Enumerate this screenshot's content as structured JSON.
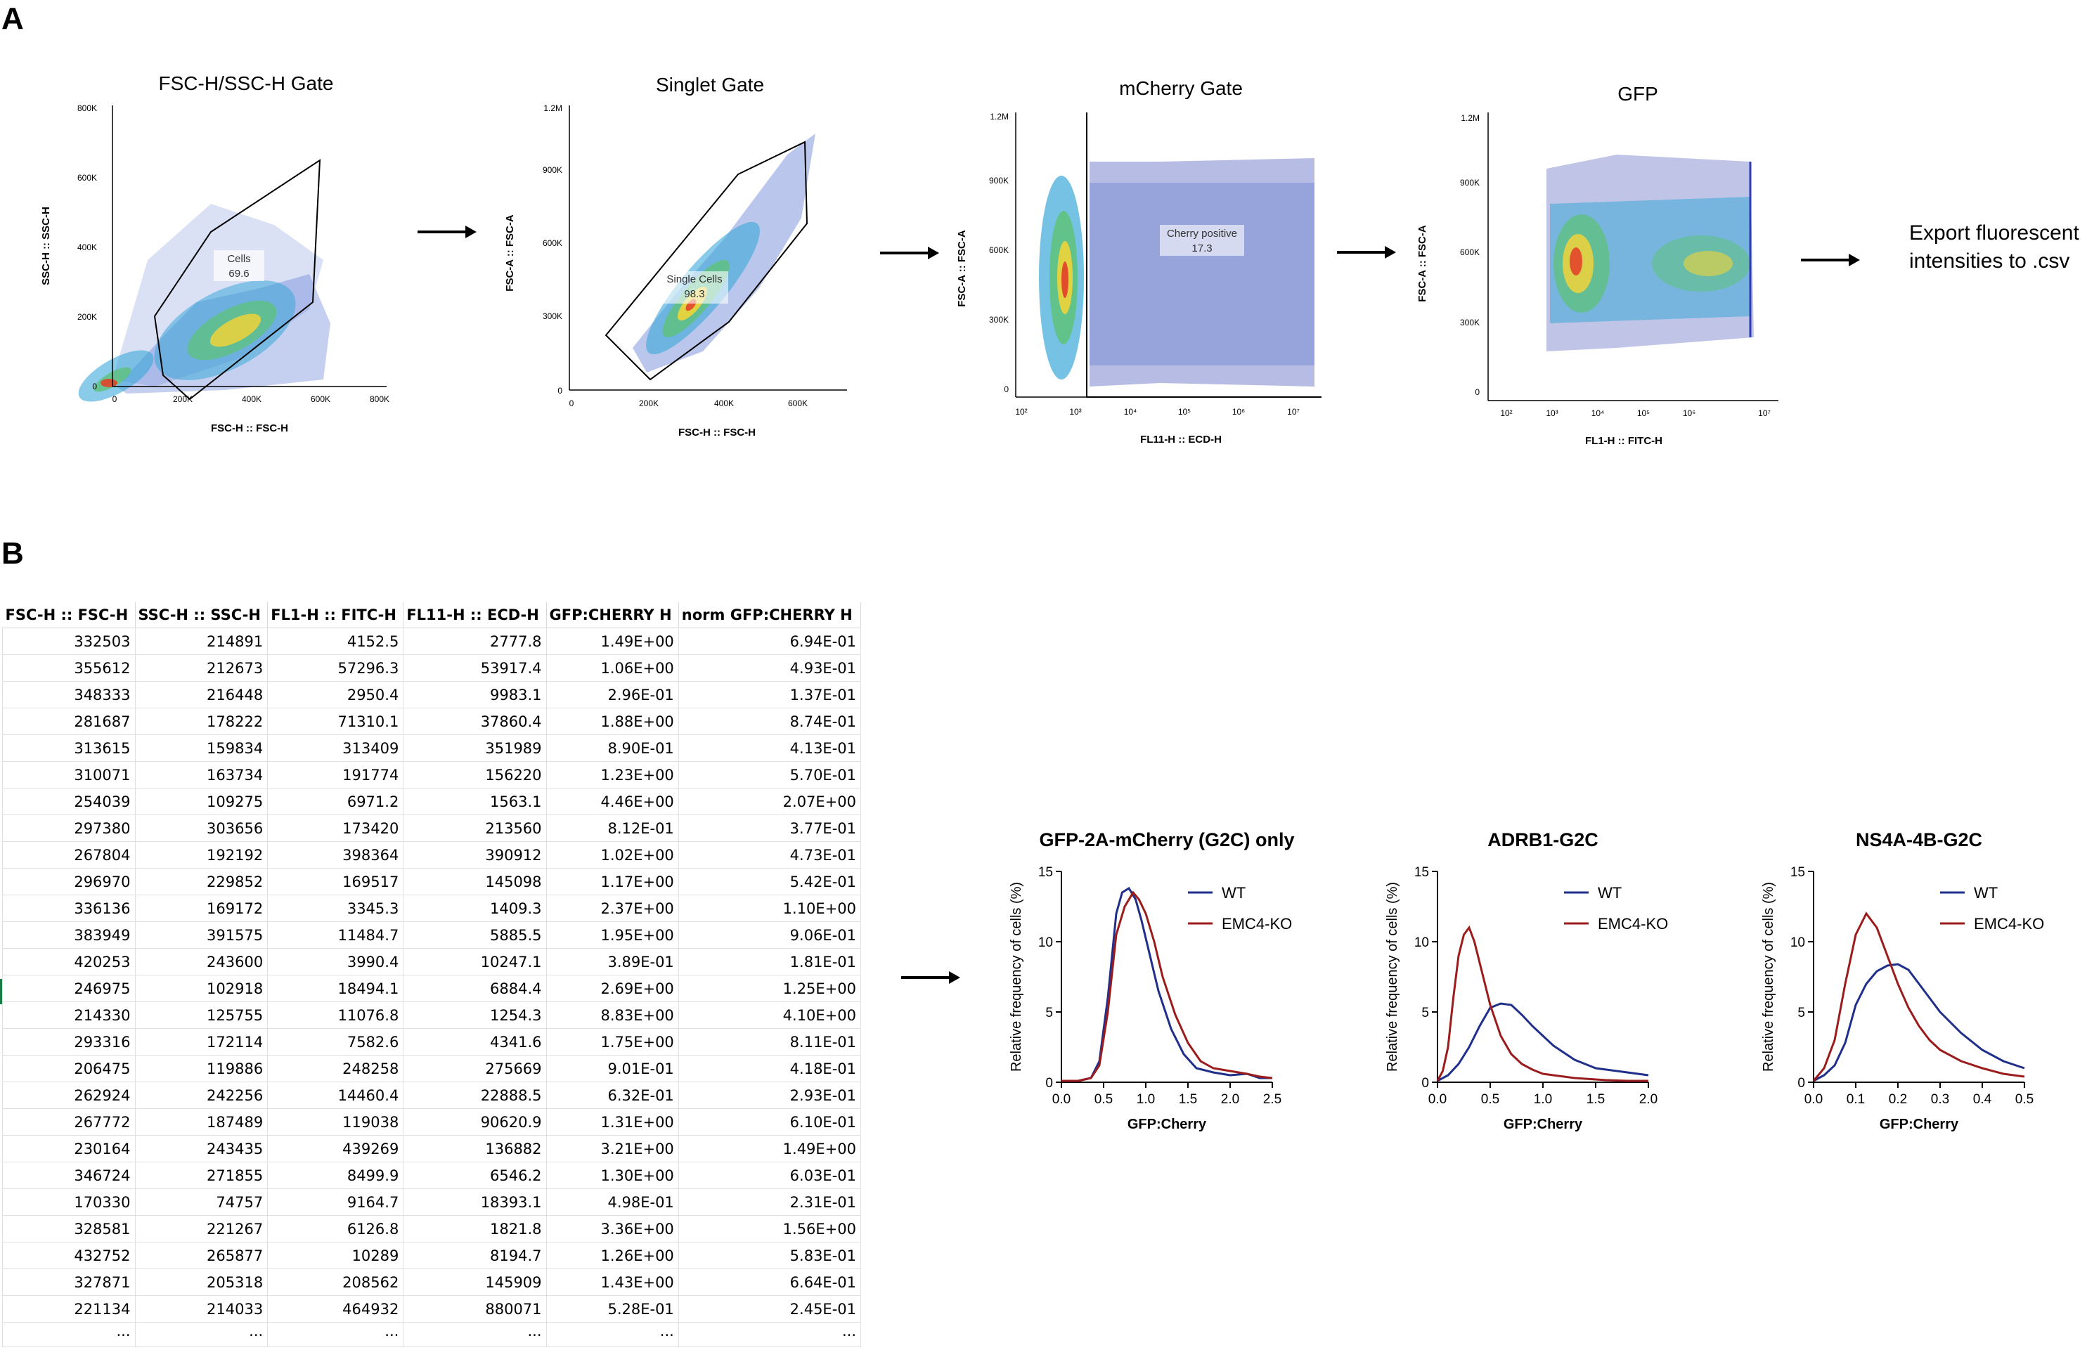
{
  "panel_a": {
    "letter": "A",
    "arrow_glyph": "→",
    "export_text": [
      "Export fluorescent",
      "intensities to .csv"
    ],
    "plots": [
      {
        "title": "FSC-H/SSC-H Gate",
        "x_label": "FSC-H :: FSC-H",
        "y_label": "SSC-H :: SSC-H",
        "x_ticks": [
          "0",
          "200K",
          "400K",
          "600K",
          "800K"
        ],
        "y_ticks": [
          "0",
          "200K",
          "400K",
          "600K",
          "800K"
        ],
        "gate_name": "Cells",
        "gate_value": "69.6"
      },
      {
        "title": "Singlet Gate",
        "x_label": "FSC-H :: FSC-H",
        "y_label": "FSC-A :: FSC-A",
        "x_ticks": [
          "0",
          "200K",
          "400K",
          "600K"
        ],
        "y_ticks": [
          "0",
          "300K",
          "600K",
          "900K",
          "1.2M"
        ],
        "gate_name": "Single Cells",
        "gate_value": "98.3"
      },
      {
        "title": "mCherry Gate",
        "x_label": "FL11-H :: ECD-H",
        "y_label": "FSC-A :: FSC-A",
        "x_ticks": [
          "10²",
          "10³",
          "10⁴",
          "10⁵",
          "10⁶",
          "10⁷"
        ],
        "y_ticks": [
          "0",
          "300K",
          "600K",
          "900K",
          "1.2M"
        ],
        "gate_name": "Cherry positive",
        "gate_value": "17.3"
      },
      {
        "title": "GFP",
        "x_label": "FL1-H :: FITC-H",
        "y_label": "FSC-A :: FSC-A",
        "x_ticks": [
          "10²",
          "10³",
          "10⁴",
          "10⁵",
          "10⁶",
          "10⁷"
        ],
        "y_ticks": [
          "0",
          "300K",
          "600K",
          "900K",
          "1.2M"
        ],
        "gate_name": "",
        "gate_value": ""
      }
    ]
  },
  "panel_b": {
    "letter": "B",
    "arrow_glyph": "→",
    "table": {
      "headers": [
        "FSC-H :: FSC-H",
        "SSC-H :: SSC-H",
        "FL1-H :: FITC-H",
        "FL11-H :: ECD-H",
        "GFP:CHERRY H",
        "norm GFP:CHERRY H"
      ],
      "rows": [
        [
          "332503",
          "214891",
          "4152.5",
          "2777.8",
          "1.49E+00",
          "6.94E-01"
        ],
        [
          "355612",
          "212673",
          "57296.3",
          "53917.4",
          "1.06E+00",
          "4.93E-01"
        ],
        [
          "348333",
          "216448",
          "2950.4",
          "9983.1",
          "2.96E-01",
          "1.37E-01"
        ],
        [
          "281687",
          "178222",
          "71310.1",
          "37860.4",
          "1.88E+00",
          "8.74E-01"
        ],
        [
          "313615",
          "159834",
          "313409",
          "351989",
          "8.90E-01",
          "4.13E-01"
        ],
        [
          "310071",
          "163734",
          "191774",
          "156220",
          "1.23E+00",
          "5.70E-01"
        ],
        [
          "254039",
          "109275",
          "6971.2",
          "1563.1",
          "4.46E+00",
          "2.07E+00"
        ],
        [
          "297380",
          "303656",
          "173420",
          "213560",
          "8.12E-01",
          "3.77E-01"
        ],
        [
          "267804",
          "192192",
          "398364",
          "390912",
          "1.02E+00",
          "4.73E-01"
        ],
        [
          "296970",
          "229852",
          "169517",
          "145098",
          "1.17E+00",
          "5.42E-01"
        ],
        [
          "336136",
          "169172",
          "3345.3",
          "1409.3",
          "2.37E+00",
          "1.10E+00"
        ],
        [
          "383949",
          "391575",
          "11484.7",
          "5885.5",
          "1.95E+00",
          "9.06E-01"
        ],
        [
          "420253",
          "243600",
          "3990.4",
          "10247.1",
          "3.89E-01",
          "1.81E-01"
        ],
        [
          "246975",
          "102918",
          "18494.1",
          "6884.4",
          "2.69E+00",
          "1.25E+00"
        ],
        [
          "214330",
          "125755",
          "11076.8",
          "1254.3",
          "8.83E+00",
          "4.10E+00"
        ],
        [
          "293316",
          "172114",
          "7582.6",
          "4341.6",
          "1.75E+00",
          "8.11E-01"
        ],
        [
          "206475",
          "119886",
          "248258",
          "275669",
          "9.01E-01",
          "4.18E-01"
        ],
        [
          "262924",
          "242256",
          "14460.4",
          "22888.5",
          "6.32E-01",
          "2.93E-01"
        ],
        [
          "267772",
          "187489",
          "119038",
          "90620.9",
          "1.31E+00",
          "6.10E-01"
        ],
        [
          "230164",
          "243435",
          "439269",
          "136882",
          "3.21E+00",
          "1.49E+00"
        ],
        [
          "346724",
          "271855",
          "8499.9",
          "6546.2",
          "1.30E+00",
          "6.03E-01"
        ],
        [
          "170330",
          "74757",
          "9164.7",
          "18393.1",
          "4.98E-01",
          "2.31E-01"
        ],
        [
          "328581",
          "221267",
          "6126.8",
          "1821.8",
          "3.36E+00",
          "1.56E+00"
        ],
        [
          "432752",
          "265877",
          "10289",
          "8194.7",
          "1.26E+00",
          "5.83E-01"
        ],
        [
          "327871",
          "205318",
          "208562",
          "145909",
          "1.43E+00",
          "6.64E-01"
        ],
        [
          "221134",
          "214033",
          "464932",
          "880071",
          "5.28E-01",
          "2.45E-01"
        ],
        [
          "...",
          "...",
          "...",
          "...",
          "...",
          "..."
        ]
      ]
    }
  },
  "chart_data": [
    {
      "type": "line",
      "title": "GFP-2A-mCherry (G2C) only",
      "xlabel": "GFP:Cherry",
      "ylabel": "Relative frequency of cells (%)",
      "xlim": [
        0,
        2.5
      ],
      "ylim": [
        0,
        15
      ],
      "xticks": [
        "0.0",
        "0.5",
        "1.0",
        "1.5",
        "2.0",
        "2.5"
      ],
      "yticks": [
        "0",
        "5",
        "10",
        "15"
      ],
      "series": [
        {
          "name": "WT",
          "color": "#1f2f8a",
          "x": [
            0.0,
            0.2,
            0.35,
            0.45,
            0.55,
            0.65,
            0.72,
            0.8,
            0.88,
            0.95,
            1.05,
            1.15,
            1.3,
            1.45,
            1.6,
            1.8,
            2.0,
            2.2,
            2.35,
            2.5
          ],
          "y": [
            0.1,
            0.1,
            0.3,
            1.5,
            6.0,
            12.0,
            13.5,
            13.8,
            13.0,
            11.5,
            9.0,
            6.5,
            3.8,
            2.0,
            1.0,
            0.7,
            0.5,
            0.6,
            0.3,
            0.3
          ]
        },
        {
          "name": "EMC4-KO",
          "color": "#9b1c1c",
          "x": [
            0.0,
            0.2,
            0.35,
            0.45,
            0.55,
            0.65,
            0.75,
            0.85,
            0.92,
            1.0,
            1.1,
            1.2,
            1.35,
            1.5,
            1.65,
            1.8,
            2.0,
            2.2,
            2.35,
            2.5
          ],
          "y": [
            0.1,
            0.1,
            0.3,
            1.2,
            5.0,
            10.5,
            12.5,
            13.5,
            13.0,
            12.0,
            10.0,
            7.5,
            4.8,
            2.8,
            1.5,
            1.0,
            0.8,
            0.6,
            0.4,
            0.3
          ]
        }
      ]
    },
    {
      "type": "line",
      "title": "ADRB1-G2C",
      "xlabel": "GFP:Cherry",
      "ylabel": "Relative frequency of cells (%)",
      "xlim": [
        0,
        2.0
      ],
      "ylim": [
        0,
        15
      ],
      "xticks": [
        "0.0",
        "0.5",
        "1.0",
        "1.5",
        "2.0"
      ],
      "yticks": [
        "0",
        "5",
        "10",
        "15"
      ],
      "series": [
        {
          "name": "WT",
          "color": "#1f2f8a",
          "x": [
            0.0,
            0.1,
            0.2,
            0.3,
            0.4,
            0.5,
            0.6,
            0.7,
            0.8,
            0.9,
            1.0,
            1.1,
            1.2,
            1.3,
            1.4,
            1.5,
            1.6,
            1.7,
            1.8,
            1.9,
            2.0
          ],
          "y": [
            0.1,
            0.5,
            1.3,
            2.5,
            4.0,
            5.3,
            5.6,
            5.5,
            4.8,
            4.0,
            3.3,
            2.6,
            2.1,
            1.6,
            1.3,
            1.0,
            0.9,
            0.8,
            0.7,
            0.6,
            0.5
          ]
        },
        {
          "name": "EMC4-KO",
          "color": "#9b1c1c",
          "x": [
            0.0,
            0.05,
            0.1,
            0.15,
            0.2,
            0.25,
            0.3,
            0.35,
            0.4,
            0.5,
            0.6,
            0.7,
            0.8,
            0.9,
            1.0,
            1.1,
            1.2,
            1.3,
            1.4,
            1.5,
            1.6,
            1.8,
            2.0
          ],
          "y": [
            0.1,
            0.8,
            2.5,
            6.0,
            9.0,
            10.5,
            11.0,
            10.0,
            8.5,
            5.5,
            3.3,
            2.0,
            1.3,
            0.9,
            0.6,
            0.5,
            0.4,
            0.3,
            0.25,
            0.2,
            0.15,
            0.1,
            0.1
          ]
        }
      ]
    },
    {
      "type": "line",
      "title": "NS4A-4B-G2C",
      "xlabel": "GFP:Cherry",
      "ylabel": "Relative frequency of cells (%)",
      "xlim": [
        0,
        0.5
      ],
      "ylim": [
        0,
        15
      ],
      "xticks": [
        "0.0",
        "0.1",
        "0.2",
        "0.3",
        "0.4",
        "0.5"
      ],
      "yticks": [
        "0",
        "5",
        "10",
        "15"
      ],
      "series": [
        {
          "name": "WT",
          "color": "#1f2f8a",
          "x": [
            0.0,
            0.025,
            0.05,
            0.075,
            0.1,
            0.125,
            0.15,
            0.175,
            0.2,
            0.225,
            0.25,
            0.275,
            0.3,
            0.35,
            0.4,
            0.45,
            0.5
          ],
          "y": [
            0.1,
            0.5,
            1.2,
            2.8,
            5.5,
            7.0,
            7.9,
            8.3,
            8.4,
            8.0,
            7.0,
            6.0,
            5.0,
            3.5,
            2.3,
            1.5,
            1.0
          ]
        },
        {
          "name": "EMC4-KO",
          "color": "#9b1c1c",
          "x": [
            0.0,
            0.025,
            0.05,
            0.075,
            0.1,
            0.125,
            0.15,
            0.175,
            0.2,
            0.225,
            0.25,
            0.275,
            0.3,
            0.35,
            0.4,
            0.45,
            0.5
          ],
          "y": [
            0.1,
            1.0,
            3.0,
            7.0,
            10.5,
            12.0,
            11.0,
            9.0,
            7.0,
            5.3,
            4.0,
            3.0,
            2.3,
            1.5,
            1.0,
            0.6,
            0.4
          ]
        }
      ]
    }
  ]
}
